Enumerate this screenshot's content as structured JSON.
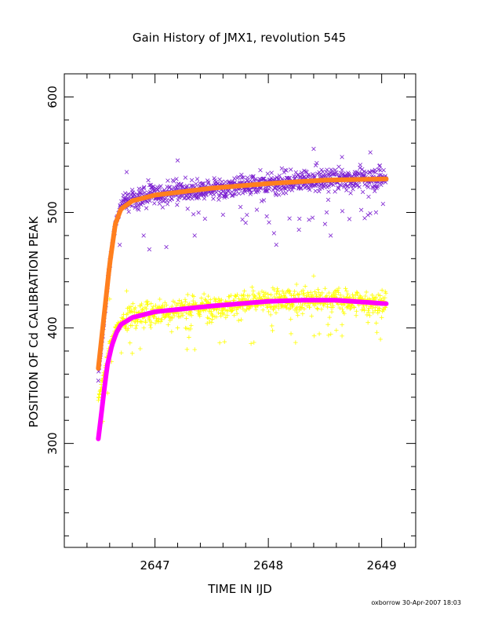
{
  "chart_data": {
    "type": "scatter",
    "title": "Gain History of JMX1, revolution 545",
    "xlabel": "TIME IN IJD",
    "ylabel": "POSITION OF Cd CALIBRATION PEAK",
    "xlim": [
      2646.2,
      2649.3
    ],
    "ylim": [
      210,
      620
    ],
    "xticks": [
      2647,
      2648,
      2649
    ],
    "yticks": [
      300,
      400,
      500,
      600
    ],
    "x_range": [
      2646.5,
      2649.04
    ],
    "grid": false,
    "legend": "none",
    "series": [
      {
        "marker": "x",
        "color": "#7b1fd0",
        "curve": [
          [
            2646.5,
            360
          ],
          [
            2646.55,
            405
          ],
          [
            2646.6,
            455
          ],
          [
            2646.65,
            490
          ],
          [
            2646.7,
            505
          ],
          [
            2646.8,
            512
          ],
          [
            2647.0,
            516
          ],
          [
            2647.5,
            521
          ],
          [
            2648.0,
            525
          ],
          [
            2648.5,
            528
          ],
          [
            2649.04,
            530
          ]
        ],
        "scatter_spread": 8,
        "outliers": [
          [
            2646.72,
            510
          ],
          [
            2646.9,
            480
          ],
          [
            2646.95,
            468
          ],
          [
            2647.1,
            470
          ],
          [
            2647.35,
            480
          ],
          [
            2647.6,
            498
          ],
          [
            2647.8,
            491
          ],
          [
            2648.05,
            482
          ],
          [
            2648.07,
            472
          ],
          [
            2648.27,
            485
          ],
          [
            2648.5,
            490
          ],
          [
            2648.55,
            480
          ],
          [
            2648.85,
            495
          ],
          [
            2648.95,
            500
          ],
          [
            2648.4,
            555
          ],
          [
            2648.9,
            552
          ],
          [
            2646.75,
            535
          ],
          [
            2647.2,
            545
          ],
          [
            2648.65,
            548
          ]
        ]
      },
      {
        "marker": "+",
        "color": "#ffff00",
        "curve": [
          [
            2646.5,
            338
          ],
          [
            2646.56,
            365
          ],
          [
            2646.6,
            385
          ],
          [
            2646.65,
            398
          ],
          [
            2646.7,
            405
          ],
          [
            2646.8,
            410
          ],
          [
            2647.0,
            414
          ],
          [
            2647.5,
            419
          ],
          [
            2648.0,
            423
          ],
          [
            2648.3,
            424
          ],
          [
            2648.6,
            424
          ],
          [
            2649.04,
            421
          ]
        ],
        "scatter_spread": 9,
        "outliers": [
          [
            2646.8,
            378
          ],
          [
            2646.87,
            382
          ],
          [
            2647.2,
            400
          ],
          [
            2647.3,
            399
          ],
          [
            2648.2,
            395
          ],
          [
            2648.4,
            445
          ],
          [
            2648.6,
            398
          ],
          [
            2648.65,
            393
          ],
          [
            2649.0,
            409
          ],
          [
            2646.6,
            425
          ],
          [
            2646.75,
            432
          ]
        ]
      },
      {
        "marker": "fit-line",
        "color": "#ff7f1e",
        "curve": [
          [
            2646.5,
            365
          ],
          [
            2646.55,
            410
          ],
          [
            2646.6,
            455
          ],
          [
            2646.65,
            490
          ],
          [
            2646.7,
            503
          ],
          [
            2646.8,
            510
          ],
          [
            2647.0,
            515
          ],
          [
            2647.5,
            521
          ],
          [
            2648.0,
            525
          ],
          [
            2648.5,
            528
          ],
          [
            2649.04,
            529
          ]
        ]
      },
      {
        "marker": "fit-line",
        "color": "#ff00ff",
        "curve": [
          [
            2646.5,
            304
          ],
          [
            2646.52,
            320
          ],
          [
            2646.55,
            345
          ],
          [
            2646.58,
            368
          ],
          [
            2646.62,
            385
          ],
          [
            2646.66,
            396
          ],
          [
            2646.7,
            403
          ],
          [
            2646.8,
            409
          ],
          [
            2647.0,
            414
          ],
          [
            2647.5,
            419
          ],
          [
            2648.0,
            423
          ],
          [
            2648.3,
            424
          ],
          [
            2648.6,
            424
          ],
          [
            2649.04,
            421
          ]
        ]
      }
    ]
  },
  "footer": "oxborrow 30-Apr-2007 18:03"
}
